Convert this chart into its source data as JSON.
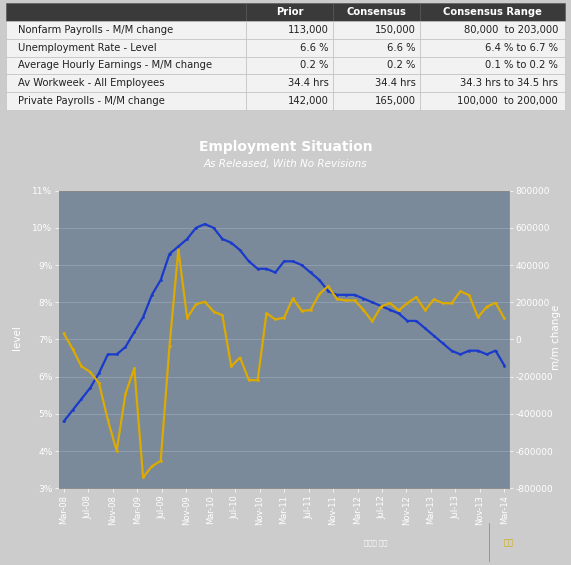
{
  "table": {
    "header": [
      "",
      "Prior",
      "Consensus",
      "Consensus Range"
    ],
    "rows": [
      [
        "Nonfarm Payrolls - M/M change",
        "113,000",
        "150,000",
        "80,000  to 203,000"
      ],
      [
        "Unemployment Rate - Level",
        "6.6 %",
        "6.6 %",
        "6.4 % to 6.7 %"
      ],
      [
        "Average Hourly Earnings - M/M change",
        "0.2 %",
        "0.2 %",
        "0.1 % to 0.2 %"
      ],
      [
        "Av Workweek - All Employees",
        "34.4 hrs",
        "34.4 hrs",
        "34.3 hrs to 34.5 hrs"
      ],
      [
        "Private Payrolls - M/M change",
        "142,000",
        "165,000",
        "100,000  to 200,000"
      ]
    ],
    "header_bg": "#3a3a3a",
    "row_bg_odd": "#f0f0f0",
    "row_bg_even": "#f0f0f0",
    "header_fg": "#ffffff",
    "row_fg": "#222222"
  },
  "chart": {
    "title": "Employment Situation",
    "subtitle": "As Released, With No Revisions",
    "outer_bg": "#8a9aaa",
    "plot_bg": "#7a8a9a",
    "title_color": "#ffffff",
    "subtitle_color": "#ffffff",
    "grid_color": "#9aaabb",
    "left_axis_label": "level",
    "right_axis_label": "m/m change",
    "unemployment_color": "#1a3acc",
    "nonfarm_color": "#ddaa00",
    "xtick_labels": [
      "Mar-08",
      "Jul-08",
      "Nov-08",
      "Mar-09",
      "Jul-09",
      "Nov-09",
      "Mar-10",
      "Jul-10",
      "Nov-10",
      "Mar-11",
      "Jul-11",
      "Nov-11",
      "Mar-12",
      "Jul-12",
      "Nov-12",
      "Mar-13",
      "Jul-13",
      "Nov-13",
      "Mar-14"
    ],
    "unemployment_data": [
      4.8,
      5.1,
      5.4,
      5.7,
      6.1,
      6.6,
      6.6,
      6.8,
      7.2,
      7.6,
      8.2,
      8.6,
      9.3,
      9.5,
      9.7,
      10.0,
      10.1,
      10.0,
      9.7,
      9.6,
      9.4,
      9.1,
      8.9,
      8.9,
      8.8,
      9.1,
      9.1,
      9.0,
      8.8,
      8.6,
      8.3,
      8.2,
      8.2,
      8.2,
      8.1,
      8.0,
      7.9,
      7.8,
      7.7,
      7.5,
      7.5,
      7.3,
      7.1,
      6.9,
      6.7,
      6.6,
      6.7,
      6.7,
      6.6,
      6.7,
      6.3
    ],
    "nonfarm_data": [
      33000,
      -51000,
      -144000,
      -175000,
      -235000,
      -433000,
      -598000,
      -292000,
      -154000,
      -741000,
      -681000,
      -652000,
      -33000,
      483000,
      116000,
      189000,
      203000,
      150000,
      130000,
      -144000,
      -97000,
      -217000,
      -220000,
      141000,
      108000,
      117000,
      221000,
      154000,
      158000,
      244000,
      287000,
      217000,
      210000,
      210000,
      160000,
      97000,
      177000,
      196000,
      157000,
      196000,
      228000,
      157000,
      215000,
      196000,
      194000,
      259000,
      238000,
      119000,
      176000,
      197000,
      113000
    ],
    "legend_blue_label": "Unemployment Rate - Level",
    "legend_gold_label": "Nonfarm Payrolls - M/M change"
  }
}
